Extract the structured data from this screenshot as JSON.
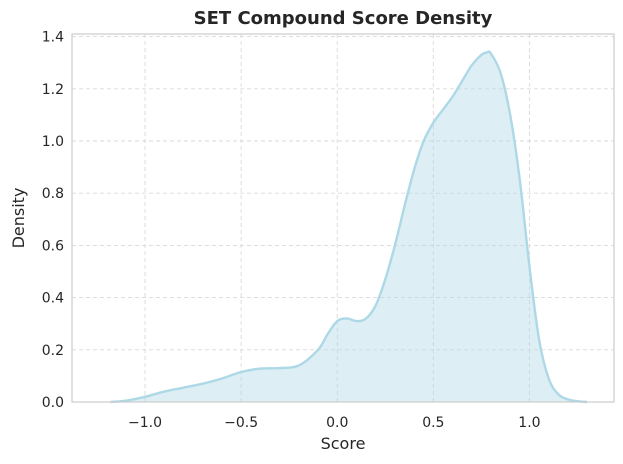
{
  "chart_data": {
    "type": "area",
    "title": "SET Compound Score Density",
    "xlabel": "Score",
    "ylabel": "Density",
    "xlim": [
      -1.38,
      1.44
    ],
    "ylim": [
      0,
      1.41
    ],
    "xticks": [
      -1.0,
      -0.5,
      0.0,
      0.5,
      1.0
    ],
    "xtick_labels": [
      "−1.0",
      "−0.5",
      "0.0",
      "0.5",
      "1.0"
    ],
    "yticks": [
      0.0,
      0.2,
      0.4,
      0.6,
      0.8,
      1.0,
      1.2,
      1.4
    ],
    "ytick_labels": [
      "0.0",
      "0.2",
      "0.4",
      "0.6",
      "0.8",
      "1.0",
      "1.2",
      "1.4"
    ],
    "grid": true,
    "line_color": "#add8e6",
    "fill_color": "#add8e6",
    "series": [
      {
        "x": [
          -1.18,
          -1.1,
          -1.0,
          -0.9,
          -0.8,
          -0.7,
          -0.6,
          -0.5,
          -0.4,
          -0.3,
          -0.2,
          -0.1,
          -0.05,
          0.0,
          0.05,
          0.1,
          0.15,
          0.2,
          0.25,
          0.3,
          0.35,
          0.4,
          0.45,
          0.5,
          0.55,
          0.6,
          0.65,
          0.7,
          0.75,
          0.78,
          0.8,
          0.85,
          0.9,
          0.95,
          1.0,
          1.05,
          1.1,
          1.15,
          1.2,
          1.25,
          1.3
        ],
        "y": [
          0.0,
          0.005,
          0.02,
          0.04,
          0.055,
          0.07,
          0.09,
          0.115,
          0.128,
          0.13,
          0.14,
          0.2,
          0.26,
          0.31,
          0.32,
          0.31,
          0.32,
          0.37,
          0.47,
          0.6,
          0.75,
          0.89,
          1.0,
          1.07,
          1.12,
          1.17,
          1.23,
          1.29,
          1.33,
          1.34,
          1.335,
          1.26,
          1.1,
          0.85,
          0.52,
          0.24,
          0.09,
          0.03,
          0.01,
          0.003,
          0.0
        ]
      }
    ]
  }
}
